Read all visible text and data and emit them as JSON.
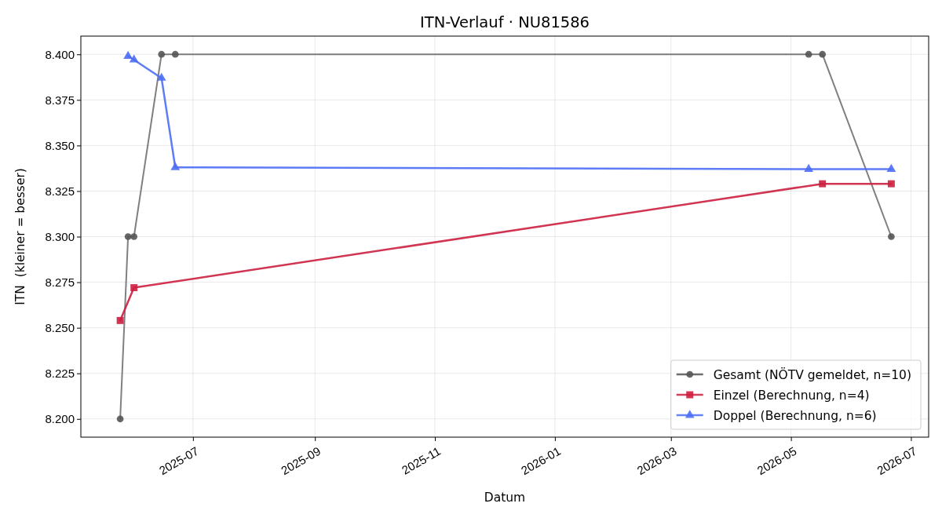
{
  "chart_data": {
    "type": "line",
    "title": "ITN-Verlauf · NU81586",
    "xlabel": "Datum",
    "ylabel": "ITN  (kleiner = besser)",
    "xlim": [
      "2025-05-05",
      "2026-07-10"
    ],
    "xticks": [
      "2025-07",
      "2025-09",
      "2025-11",
      "2026-01",
      "2026-03",
      "2026-05",
      "2026-07"
    ],
    "ylim": [
      8.19,
      8.41
    ],
    "yticks": [
      {
        "value": 8.2,
        "label": "8.200"
      },
      {
        "value": 8.225,
        "label": "8.225"
      },
      {
        "value": 8.25,
        "label": "8.250"
      },
      {
        "value": 8.275,
        "label": "8.275"
      },
      {
        "value": 8.3,
        "label": "8.300"
      },
      {
        "value": 8.325,
        "label": "8.325"
      },
      {
        "value": 8.35,
        "label": "8.350"
      },
      {
        "value": 8.375,
        "label": "8.375"
      },
      {
        "value": 8.4,
        "label": "8.400"
      }
    ],
    "grid": true,
    "legend": "bottom right",
    "series": [
      {
        "name": "Gesamt (NÖTV gemeldet, n=10)",
        "color": "#555555",
        "marker": "circle",
        "x": [
          "2025-05-25",
          "2025-05-29",
          "2025-06-01",
          "2025-06-15",
          "2025-06-22",
          "2026-05-10",
          "2026-05-17",
          "2026-06-21"
        ],
        "values": [
          8.2,
          8.3,
          8.3,
          8.4,
          8.4,
          8.4,
          8.4,
          8.3
        ]
      },
      {
        "name": "Einzel (Berechnung, n=4)",
        "color": "#cc1f3f",
        "marker": "square",
        "x": [
          "2025-05-25",
          "2025-06-01",
          "2026-05-17",
          "2026-06-21"
        ],
        "values": [
          8.254,
          8.272,
          8.329,
          8.329
        ]
      },
      {
        "name": "Doppel (Berechnung, n=6)",
        "color": "#4c6ef5",
        "marker": "triangle",
        "x": [
          "2025-05-29",
          "2025-06-01",
          "2025-06-15",
          "2025-06-22",
          "2026-05-10",
          "2026-06-21"
        ],
        "values": [
          8.399,
          8.397,
          8.387,
          8.338,
          8.337,
          8.337
        ]
      }
    ]
  }
}
